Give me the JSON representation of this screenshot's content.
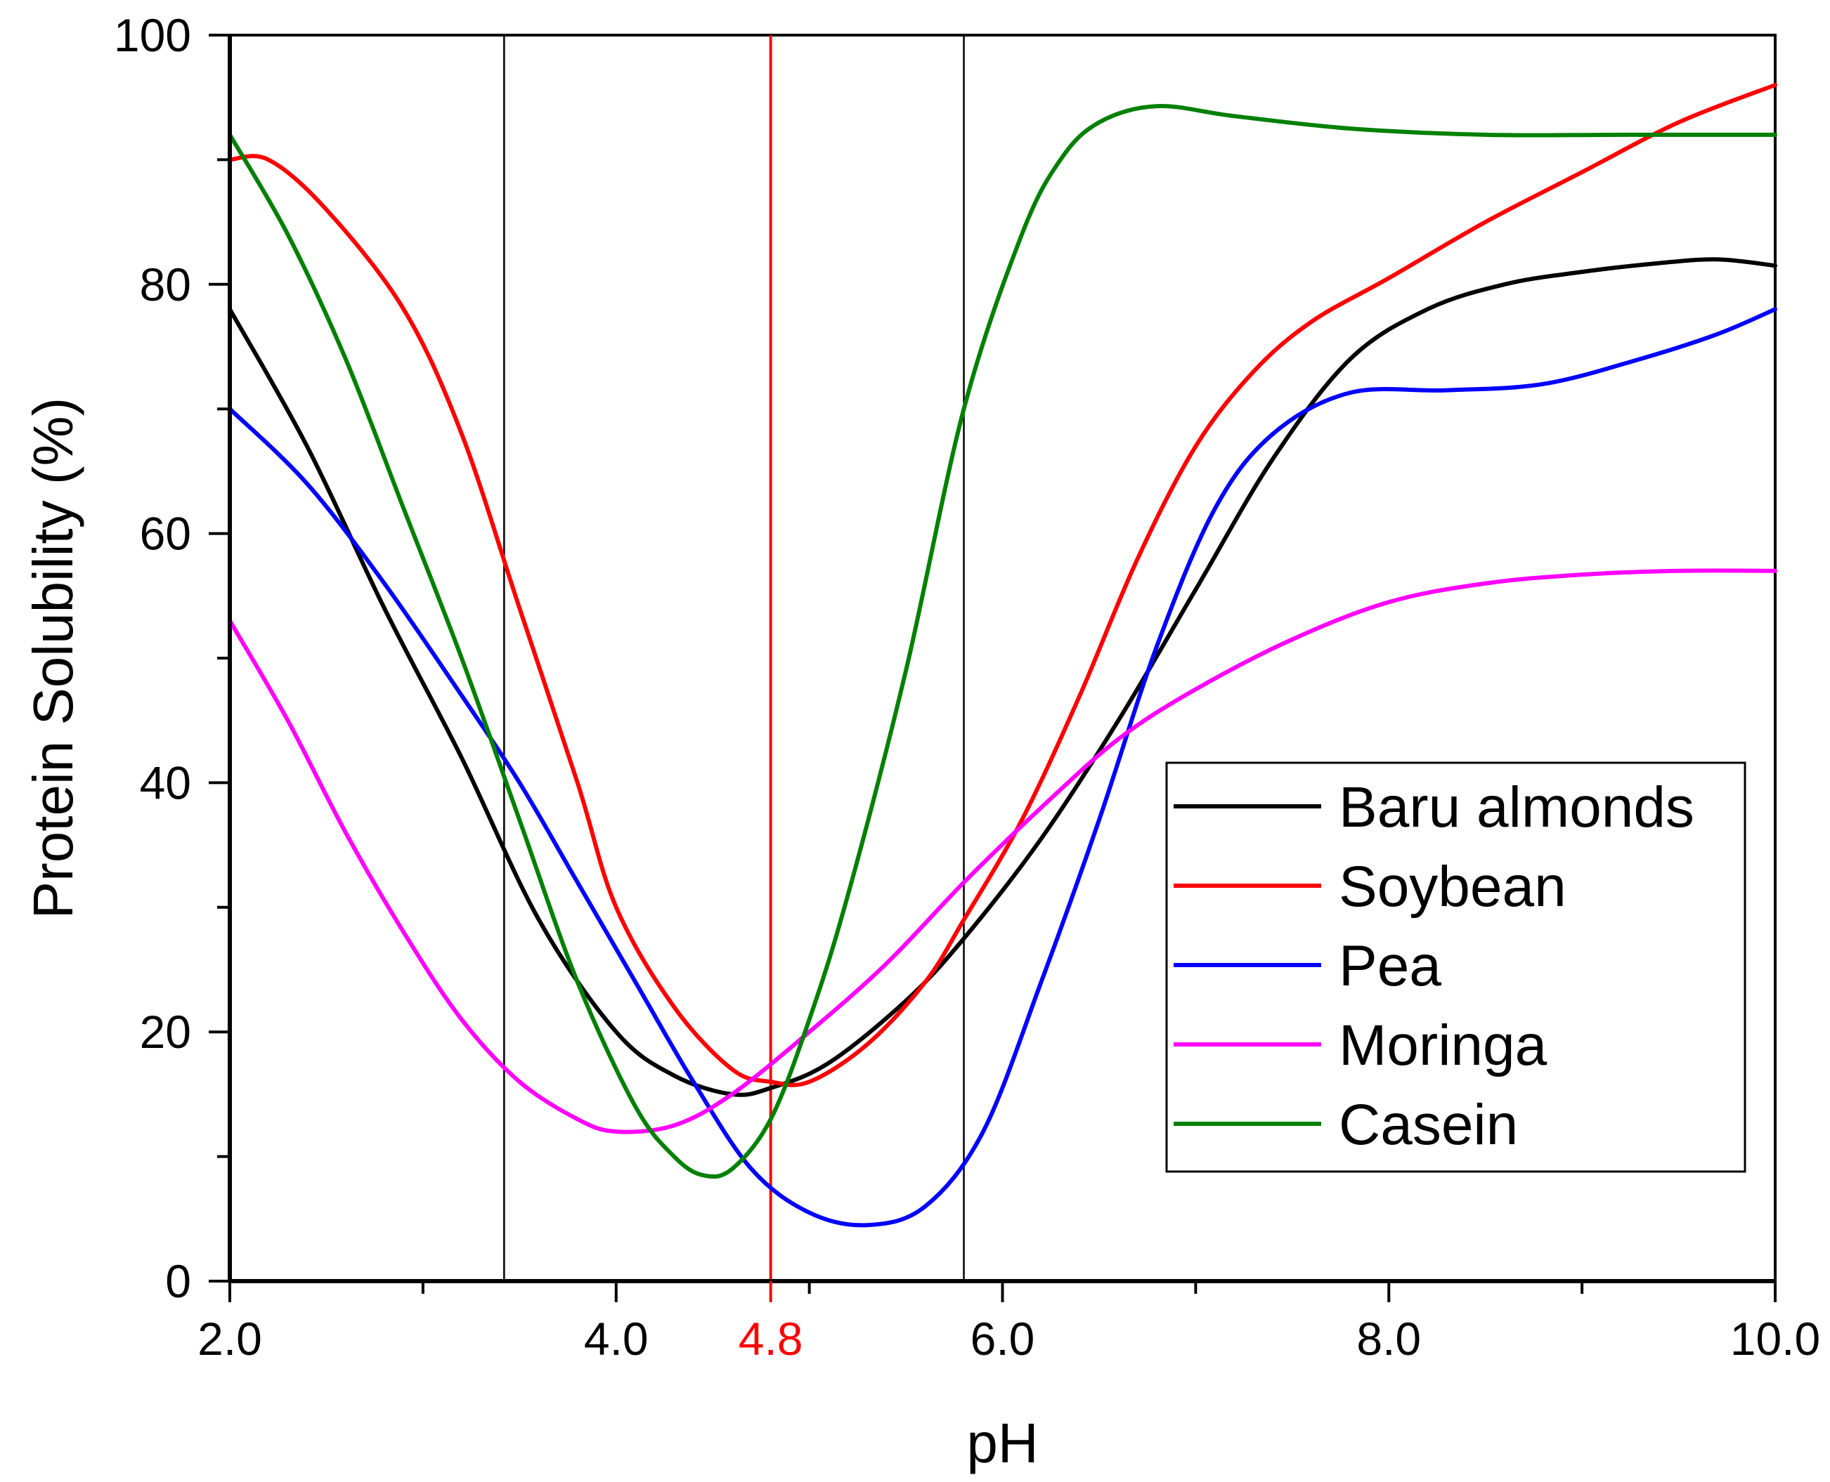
{
  "chart_data": {
    "type": "line",
    "title": "",
    "xlabel": "pH",
    "ylabel": "Protein Solubility (%)",
    "xlim": [
      2.0,
      10.0
    ],
    "ylim": [
      0,
      100
    ],
    "x_ticks": [
      "2.0",
      "4.0",
      "6.0",
      "8.0",
      "10.0"
    ],
    "y_ticks": [
      "0",
      "20",
      "40",
      "60",
      "80",
      "100"
    ],
    "reference_lines": [
      {
        "x": 3.42,
        "color": "#000000",
        "label": ""
      },
      {
        "x": 4.8,
        "color": "#ff0000",
        "label": "4.8"
      },
      {
        "x": 5.8,
        "color": "#000000",
        "label": ""
      }
    ],
    "legend_position": "center-right",
    "series": [
      {
        "name": "Baru almonds",
        "color": "#000000",
        "points": [
          [
            2.0,
            78
          ],
          [
            2.4,
            67
          ],
          [
            2.8,
            54
          ],
          [
            3.2,
            42
          ],
          [
            3.6,
            29
          ],
          [
            4.0,
            20
          ],
          [
            4.3,
            16.5
          ],
          [
            4.6,
            15
          ],
          [
            4.8,
            15.5
          ],
          [
            5.1,
            17.5
          ],
          [
            5.5,
            22.5
          ],
          [
            5.8,
            27.5
          ],
          [
            6.2,
            35.5
          ],
          [
            6.6,
            45
          ],
          [
            7.0,
            55.5
          ],
          [
            7.4,
            66
          ],
          [
            7.8,
            74
          ],
          [
            8.2,
            78
          ],
          [
            8.6,
            80
          ],
          [
            9.0,
            81
          ],
          [
            9.4,
            81.7
          ],
          [
            9.7,
            82
          ],
          [
            10.0,
            81.5
          ]
        ]
      },
      {
        "name": "Soybean",
        "color": "#ff0000",
        "points": [
          [
            2.0,
            90
          ],
          [
            2.2,
            90
          ],
          [
            2.5,
            86
          ],
          [
            2.9,
            78
          ],
          [
            3.2,
            68
          ],
          [
            3.5,
            54
          ],
          [
            3.8,
            40
          ],
          [
            4.0,
            30
          ],
          [
            4.3,
            22
          ],
          [
            4.6,
            17
          ],
          [
            4.8,
            16
          ],
          [
            5.0,
            16
          ],
          [
            5.3,
            19
          ],
          [
            5.6,
            24
          ],
          [
            5.8,
            29
          ],
          [
            6.1,
            37
          ],
          [
            6.4,
            47
          ],
          [
            6.7,
            58
          ],
          [
            7.0,
            67
          ],
          [
            7.3,
            73
          ],
          [
            7.6,
            77
          ],
          [
            8.0,
            80.5
          ],
          [
            8.5,
            85
          ],
          [
            9.0,
            89
          ],
          [
            9.5,
            93
          ],
          [
            10.0,
            96
          ]
        ]
      },
      {
        "name": "Pea",
        "color": "#0000ff",
        "points": [
          [
            2.0,
            70
          ],
          [
            2.4,
            64
          ],
          [
            2.8,
            56
          ],
          [
            3.2,
            47
          ],
          [
            3.5,
            40
          ],
          [
            3.8,
            32
          ],
          [
            4.1,
            24
          ],
          [
            4.4,
            16
          ],
          [
            4.7,
            9
          ],
          [
            5.0,
            5.5
          ],
          [
            5.3,
            4.5
          ],
          [
            5.6,
            6
          ],
          [
            5.9,
            12
          ],
          [
            6.2,
            24
          ],
          [
            6.5,
            37
          ],
          [
            6.8,
            51
          ],
          [
            7.1,
            62
          ],
          [
            7.4,
            68
          ],
          [
            7.8,
            71.3
          ],
          [
            8.3,
            71.5
          ],
          [
            8.8,
            72
          ],
          [
            9.3,
            74
          ],
          [
            9.7,
            76
          ],
          [
            10.0,
            78
          ]
        ]
      },
      {
        "name": "Moringa",
        "color": "#ff00ff",
        "points": [
          [
            2.0,
            53
          ],
          [
            2.3,
            45
          ],
          [
            2.6,
            36
          ],
          [
            2.9,
            28
          ],
          [
            3.2,
            21
          ],
          [
            3.5,
            16
          ],
          [
            3.8,
            13
          ],
          [
            4.0,
            12
          ],
          [
            4.3,
            12.5
          ],
          [
            4.6,
            15
          ],
          [
            5.0,
            20
          ],
          [
            5.4,
            25.5
          ],
          [
            5.8,
            32
          ],
          [
            6.2,
            38
          ],
          [
            6.6,
            43.5
          ],
          [
            7.0,
            47.5
          ],
          [
            7.5,
            51.5
          ],
          [
            8.0,
            54.5
          ],
          [
            8.5,
            56
          ],
          [
            9.0,
            56.7
          ],
          [
            9.5,
            57
          ],
          [
            10.0,
            57
          ]
        ]
      },
      {
        "name": "Casein",
        "color": "#008000",
        "points": [
          [
            2.0,
            92
          ],
          [
            2.3,
            84
          ],
          [
            2.6,
            74
          ],
          [
            2.9,
            62
          ],
          [
            3.2,
            50
          ],
          [
            3.5,
            37
          ],
          [
            3.8,
            24
          ],
          [
            4.1,
            14
          ],
          [
            4.3,
            10
          ],
          [
            4.45,
            8.5
          ],
          [
            4.6,
            9
          ],
          [
            4.8,
            13
          ],
          [
            5.0,
            21
          ],
          [
            5.2,
            31
          ],
          [
            5.5,
            49
          ],
          [
            5.8,
            70
          ],
          [
            6.1,
            84
          ],
          [
            6.3,
            90
          ],
          [
            6.5,
            93
          ],
          [
            6.8,
            94.3
          ],
          [
            7.2,
            93.5
          ],
          [
            7.8,
            92.5
          ],
          [
            8.5,
            92
          ],
          [
            9.2,
            92
          ],
          [
            10.0,
            92
          ]
        ]
      }
    ]
  }
}
